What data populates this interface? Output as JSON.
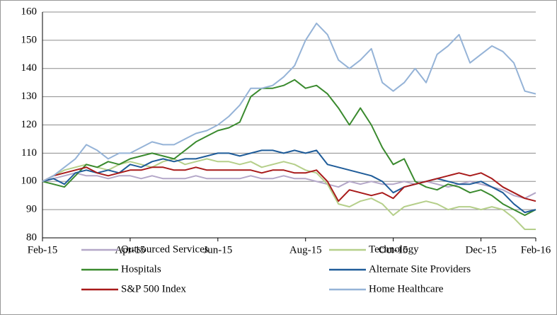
{
  "chart_data": {
    "type": "line",
    "categories": [
      "Feb-15",
      null,
      null,
      null,
      null,
      null,
      null,
      null,
      "Apr-15",
      null,
      null,
      null,
      null,
      null,
      null,
      null,
      "Jun-15",
      null,
      null,
      null,
      null,
      null,
      null,
      null,
      "Aug-15",
      null,
      null,
      null,
      null,
      null,
      null,
      null,
      "Oct-15",
      null,
      null,
      null,
      null,
      null,
      null,
      null,
      "Dec-15",
      null,
      null,
      null,
      null,
      "Feb-16"
    ],
    "series": [
      {
        "name": "Outsourced Services",
        "color": "#b4a7c8",
        "values": [
          100,
          101,
          102,
          103,
          102,
          102,
          101,
          102,
          102,
          101,
          102,
          101,
          101,
          101,
          102,
          101,
          101,
          101,
          101,
          102,
          101,
          101,
          102,
          101,
          101,
          100,
          99,
          98,
          100,
          99,
          100,
          99,
          99,
          100,
          99,
          100,
          99,
          98,
          99,
          100,
          99,
          98,
          97,
          95,
          94,
          96
        ]
      },
      {
        "name": "Technology",
        "color": "#b5cf8a",
        "values": [
          100,
          102,
          104,
          105,
          106,
          105,
          104,
          106,
          107,
          106,
          105,
          107,
          108,
          106,
          107,
          108,
          107,
          107,
          106,
          107,
          105,
          106,
          107,
          106,
          104,
          103,
          99,
          92,
          91,
          93,
          94,
          92,
          88,
          91,
          92,
          93,
          92,
          90,
          91,
          91,
          90,
          91,
          90,
          87,
          83,
          83
        ]
      },
      {
        "name": "Hospitals",
        "color": "#3a8a2e",
        "values": [
          100,
          99,
          98,
          102,
          106,
          105,
          107,
          106,
          108,
          109,
          110,
          109,
          108,
          111,
          114,
          116,
          118,
          119,
          121,
          130,
          133,
          133,
          134,
          136,
          133,
          134,
          131,
          126,
          120,
          126,
          120,
          112,
          106,
          108,
          100,
          98,
          97,
          99,
          98,
          96,
          97,
          95,
          92,
          90,
          88,
          90
        ]
      },
      {
        "name": "Alternate Site Providers",
        "color": "#1f5c99",
        "values": [
          100,
          101,
          99,
          103,
          104,
          103,
          104,
          103,
          106,
          105,
          107,
          108,
          107,
          108,
          108,
          109,
          110,
          110,
          109,
          110,
          111,
          111,
          110,
          111,
          110,
          111,
          106,
          105,
          104,
          103,
          102,
          100,
          96,
          98,
          99,
          100,
          101,
          100,
          99,
          99,
          100,
          98,
          96,
          92,
          89,
          90
        ]
      },
      {
        "name": "S&P 500 Index",
        "color": "#a81a1a",
        "values": [
          100,
          102,
          103,
          104,
          105,
          103,
          102,
          103,
          104,
          104,
          105,
          105,
          104,
          104,
          105,
          104,
          104,
          104,
          104,
          104,
          103,
          104,
          104,
          103,
          103,
          104,
          100,
          93,
          97,
          96,
          95,
          96,
          94,
          98,
          99,
          100,
          101,
          102,
          103,
          102,
          103,
          101,
          98,
          96,
          94,
          93
        ]
      },
      {
        "name": "Home Healthcare",
        "color": "#95b3d7",
        "values": [
          100,
          102,
          105,
          108,
          113,
          111,
          108,
          110,
          110,
          112,
          114,
          113,
          113,
          115,
          117,
          118,
          120,
          123,
          127,
          133,
          133,
          134,
          137,
          141,
          150,
          156,
          152,
          143,
          140,
          143,
          147,
          135,
          132,
          135,
          140,
          135,
          145,
          148,
          152,
          142,
          145,
          148,
          146,
          142,
          132,
          131
        ]
      }
    ],
    "ylim": [
      80,
      160
    ],
    "yticks": [
      80,
      90,
      100,
      110,
      120,
      130,
      140,
      150,
      160
    ],
    "grid": true,
    "legend": "bottom"
  }
}
